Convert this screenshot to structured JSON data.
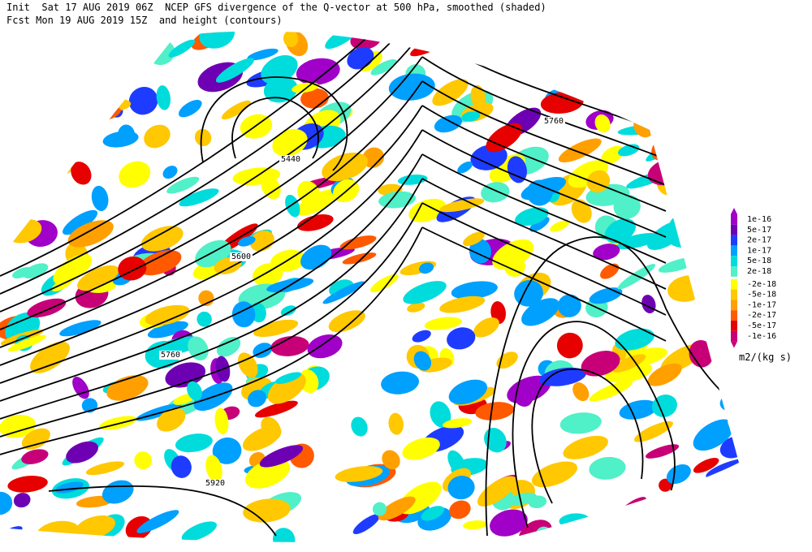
{
  "header": {
    "line1": "Init  Sat 17 AUG 2019 06Z  NCEP GFS divergence of the Q-vector at 500 hPa, smoothed (shaded)",
    "line2": "Fcst Mon 19 AUG 2019 15Z  and height (contours)"
  },
  "contour_labels": [
    "5440",
    "5600",
    "5760",
    "5760",
    "5920"
  ],
  "colorbar": {
    "labels": [
      "1e-16",
      "5e-17",
      "2e-17",
      "1e-17",
      "5e-18",
      "2e-18",
      "-2e-18",
      "-5e-18",
      "-1e-17",
      "-2e-17",
      "-5e-17",
      "-1e-16"
    ],
    "unit": "m2/(kg s)"
  }
}
